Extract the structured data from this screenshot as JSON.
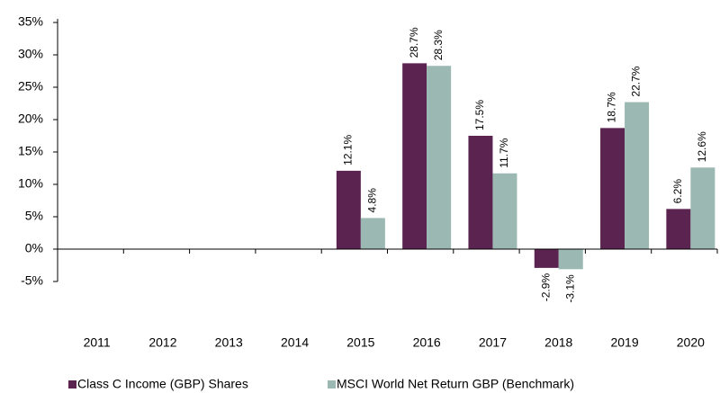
{
  "chart_data": {
    "type": "bar",
    "categories": [
      "2011",
      "2012",
      "2013",
      "2014",
      "2015",
      "2016",
      "2017",
      "2018",
      "2019",
      "2020"
    ],
    "series": [
      {
        "name": "Class C Income (GBP) Shares",
        "color": "#5b2350",
        "values": [
          null,
          null,
          null,
          null,
          12.1,
          28.7,
          17.5,
          -2.9,
          18.7,
          6.2
        ],
        "value_labels": [
          null,
          null,
          null,
          null,
          "12.1%",
          "28.7%",
          "17.5%",
          "-2.9%",
          "18.7%",
          "6.2%"
        ]
      },
      {
        "name": "MSCI World Net Return GBP (Benchmark)",
        "color": "#9bb8b3",
        "values": [
          null,
          null,
          null,
          null,
          4.8,
          28.3,
          11.7,
          -3.1,
          22.7,
          12.6
        ],
        "value_labels": [
          null,
          null,
          null,
          null,
          "4.8%",
          "28.3%",
          "11.7%",
          "-3.1%",
          "22.7%",
          "12.6%"
        ]
      }
    ],
    "ylim": [
      -5,
      35
    ],
    "yticks": [
      {
        "value": -5,
        "label": "-5%"
      },
      {
        "value": 0,
        "label": "0%"
      },
      {
        "value": 5,
        "label": "5%"
      },
      {
        "value": 10,
        "label": "10%"
      },
      {
        "value": 15,
        "label": "15%"
      },
      {
        "value": 20,
        "label": "20%"
      },
      {
        "value": 25,
        "label": "25%"
      },
      {
        "value": 30,
        "label": "30%"
      },
      {
        "value": 35,
        "label": "35%"
      }
    ],
    "grid": false
  }
}
